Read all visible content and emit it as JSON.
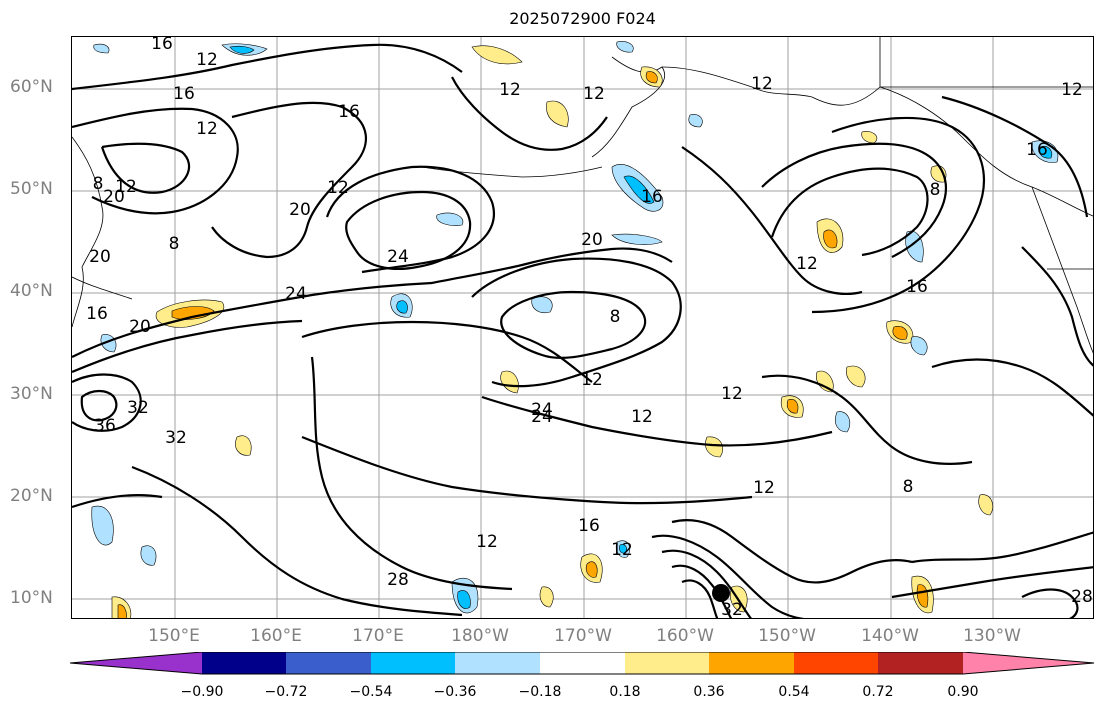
{
  "title": "2025072900 F024",
  "lat_labels": [
    "60°N",
    "50°N",
    "40°N",
    "30°N",
    "20°N",
    "10°N"
  ],
  "lon_labels": [
    "150°E",
    "160°E",
    "170°E",
    "180°W",
    "170°W",
    "160°W",
    "150°W",
    "140°W",
    "130°W"
  ],
  "colorbar": {
    "colors": [
      "#9932cc",
      "#00008b",
      "#3a5fcd",
      "#00bfff",
      "#b0e2ff",
      "#ffffff",
      "#ffec8b",
      "#ffa500",
      "#ff4500",
      "#b22222",
      "#ff82ab"
    ],
    "ticks": [
      "−0.90",
      "−0.72",
      "−0.54",
      "−0.36",
      "−0.18",
      "0.18",
      "0.36",
      "0.54",
      "0.72",
      "0.90"
    ]
  },
  "contour_labels": [
    "12",
    "16",
    "12",
    "12",
    "12",
    "12",
    "12",
    "16",
    "16",
    "16",
    "8",
    "20",
    "12",
    "24",
    "20",
    "16",
    "12",
    "8",
    "24",
    "20",
    "8",
    "12",
    "16",
    "24",
    "16",
    "20",
    "36",
    "32",
    "32",
    "12",
    "24",
    "12",
    "12",
    "12",
    "8",
    "16",
    "12",
    "28",
    "32",
    "28",
    "12",
    "8",
    "20"
  ]
}
